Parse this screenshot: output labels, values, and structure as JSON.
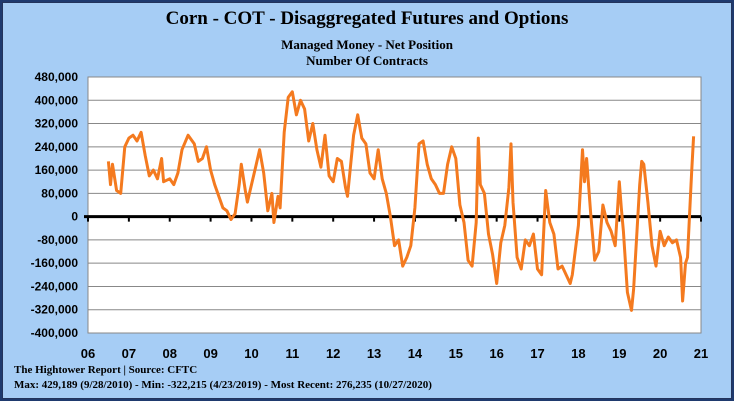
{
  "chart_data": {
    "type": "line",
    "title": "Corn - COT - Disaggregated Futures and Options",
    "subtitle": [
      "Managed Money - Net Position",
      "Number Of Contracts"
    ],
    "xlabel": "",
    "ylabel": "",
    "ylim": [
      -400000,
      480000
    ],
    "yticks": [
      "480,000",
      "400,000",
      "320,000",
      "240,000",
      "160,000",
      "80,000",
      "0",
      "-80,000",
      "-160,000",
      "-240,000",
      "-320,000",
      "-400,000"
    ],
    "xlim": [
      2006,
      2021
    ],
    "xticks": [
      "06",
      "07",
      "08",
      "09",
      "10",
      "11",
      "12",
      "13",
      "14",
      "15",
      "16",
      "17",
      "18",
      "19",
      "20",
      "21"
    ],
    "grid": true,
    "series_color": "#f47a1f",
    "series": [
      {
        "x": [
          2006.5,
          2006.55,
          2006.6,
          2006.7,
          2006.8,
          2006.9,
          2007.0,
          2007.1,
          2007.2,
          2007.3,
          2007.4,
          2007.5,
          2007.6,
          2007.7,
          2007.8,
          2007.85,
          2008.0,
          2008.1,
          2008.2,
          2008.3,
          2008.45,
          2008.6,
          2008.7,
          2008.8,
          2008.9,
          2009.0,
          2009.1,
          2009.3,
          2009.4,
          2009.5,
          2009.6,
          2009.7,
          2009.75,
          2009.85,
          2009.9,
          2010.0,
          2010.1,
          2010.2,
          2010.3,
          2010.4,
          2010.5,
          2010.55,
          2010.65,
          2010.7,
          2010.8,
          2010.9,
          2011.0,
          2011.1,
          2011.2,
          2011.3,
          2011.4,
          2011.5,
          2011.6,
          2011.7,
          2011.8,
          2011.9,
          2012.0,
          2012.1,
          2012.2,
          2012.3,
          2012.35,
          2012.5,
          2012.6,
          2012.7,
          2012.8,
          2012.9,
          2013.0,
          2013.1,
          2013.2,
          2013.3,
          2013.4,
          2013.5,
          2013.6,
          2013.7,
          2013.8,
          2013.9,
          2014.0,
          2014.1,
          2014.2,
          2014.3,
          2014.4,
          2014.5,
          2014.6,
          2014.7,
          2014.8,
          2014.9,
          2015.0,
          2015.1,
          2015.2,
          2015.3,
          2015.4,
          2015.5,
          2015.55,
          2015.6,
          2015.7,
          2015.8,
          2015.9,
          2016.0,
          2016.1,
          2016.2,
          2016.3,
          2016.35,
          2016.4,
          2016.5,
          2016.6,
          2016.7,
          2016.8,
          2016.9,
          2017.0,
          2017.1,
          2017.2,
          2017.3,
          2017.4,
          2017.5,
          2017.6,
          2017.8,
          2017.85,
          2018.0,
          2018.1,
          2018.15,
          2018.2,
          2018.3,
          2018.4,
          2018.5,
          2018.6,
          2018.7,
          2018.8,
          2018.9,
          2019.0,
          2019.05,
          2019.1,
          2019.2,
          2019.3,
          2019.35,
          2019.5,
          2019.55,
          2019.6,
          2019.7,
          2019.8,
          2019.9,
          2020.0,
          2020.1,
          2020.2,
          2020.3,
          2020.4,
          2020.5,
          2020.55,
          2020.62,
          2020.67,
          2020.72,
          2020.77,
          2020.82
        ],
        "y": [
          190000,
          110000,
          180000,
          90000,
          80000,
          240000,
          270000,
          280000,
          260000,
          290000,
          210000,
          140000,
          160000,
          130000,
          200000,
          120000,
          130000,
          110000,
          150000,
          230000,
          280000,
          250000,
          190000,
          200000,
          240000,
          160000,
          110000,
          30000,
          20000,
          -10000,
          10000,
          110000,
          180000,
          90000,
          50000,
          110000,
          170000,
          230000,
          150000,
          20000,
          80000,
          -20000,
          70000,
          30000,
          290000,
          410000,
          429189,
          350000,
          400000,
          370000,
          260000,
          320000,
          230000,
          170000,
          280000,
          140000,
          120000,
          200000,
          190000,
          100000,
          70000,
          280000,
          350000,
          270000,
          250000,
          150000,
          130000,
          230000,
          130000,
          80000,
          0,
          -100000,
          -80000,
          -170000,
          -140000,
          -100000,
          30000,
          250000,
          260000,
          180000,
          130000,
          110000,
          80000,
          80000,
          180000,
          240000,
          200000,
          40000,
          -20000,
          -150000,
          -170000,
          -20000,
          270000,
          110000,
          80000,
          -60000,
          -130000,
          -230000,
          -90000,
          -30000,
          100000,
          250000,
          50000,
          -140000,
          -180000,
          -80000,
          -100000,
          -60000,
          -180000,
          -200000,
          90000,
          -20000,
          -60000,
          -180000,
          -170000,
          -230000,
          -200000,
          -30000,
          230000,
          120000,
          200000,
          10000,
          -150000,
          -120000,
          40000,
          -20000,
          -50000,
          -100000,
          120000,
          30000,
          -50000,
          -260000,
          -322215,
          -250000,
          110000,
          190000,
          180000,
          50000,
          -100000,
          -170000,
          -50000,
          -100000,
          -70000,
          -90000,
          -80000,
          -140000,
          -290000,
          -160000,
          -140000,
          10000,
          150000,
          276235
        ]
      }
    ],
    "annotations": {
      "source": "The Hightower Report | Source: CFTC",
      "stats": "Max: 429,189 (9/28/2010)  - Min: -322,215 (4/23/2019) - Most Recent: 276,235 (10/27/2020)"
    }
  }
}
